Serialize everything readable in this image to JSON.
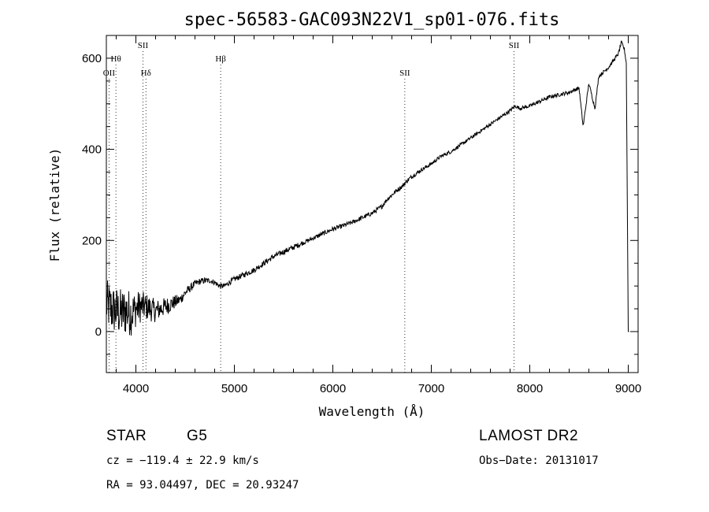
{
  "chart_data": {
    "type": "line",
    "title": "spec-56583-GAC093N22V1_sp01-076.fits",
    "xlabel": "Wavelength (Å)",
    "ylabel": "Flux (relative)",
    "xlim": [
      3700,
      9100
    ],
    "ylim": [
      -90,
      650
    ],
    "x_ticks": [
      "4000",
      "5000",
      "6000",
      "7000",
      "8000",
      "9000"
    ],
    "y_ticks": [
      "0",
      "200",
      "400",
      "600"
    ],
    "grid": false,
    "series": [
      {
        "x": [
          3700,
          3750,
          3800,
          3850,
          3900,
          3950,
          4000,
          4050,
          4100,
          4150,
          4200,
          4250,
          4300,
          4350,
          4400,
          4450,
          4500,
          4550,
          4600,
          4650,
          4700,
          4750,
          4800,
          4850,
          4900,
          4950,
          5000,
          5100,
          5200,
          5300,
          5400,
          5500,
          5600,
          5700,
          5800,
          5900,
          6000,
          6100,
          6200,
          6300,
          6400,
          6500,
          6550,
          6600,
          6650,
          6700,
          6750,
          6800,
          6900,
          7000,
          7100,
          7200,
          7300,
          7400,
          7500,
          7600,
          7700,
          7800,
          7850,
          7900,
          8000,
          8100,
          8200,
          8300,
          8400,
          8500,
          8542,
          8600,
          8662,
          8700,
          8750,
          8800,
          8850,
          8900,
          8930,
          8960,
          8980,
          9000,
          9010
        ],
        "y": [
          60,
          50,
          45,
          40,
          45,
          40,
          50,
          55,
          55,
          50,
          45,
          50,
          55,
          60,
          65,
          70,
          85,
          95,
          105,
          110,
          112,
          112,
          108,
          100,
          100,
          108,
          115,
          125,
          135,
          150,
          165,
          175,
          185,
          195,
          205,
          215,
          225,
          232,
          240,
          250,
          260,
          275,
          290,
          300,
          310,
          318,
          330,
          340,
          355,
          368,
          385,
          395,
          410,
          425,
          440,
          455,
          470,
          485,
          495,
          490,
          495,
          505,
          515,
          520,
          525,
          535,
          450,
          545,
          490,
          560,
          570,
          580,
          595,
          610,
          635,
          620,
          590,
          0,
          0
        ],
        "noise": [
          55,
          55,
          55,
          55,
          55,
          50,
          40,
          35,
          30,
          28,
          25,
          22,
          20,
          18,
          15,
          12,
          10,
          9,
          8,
          7,
          7,
          6,
          6,
          6,
          6,
          6,
          6,
          6,
          6,
          6,
          6,
          6,
          6,
          5,
          5,
          5,
          5,
          5,
          5,
          5,
          5,
          5,
          5,
          5,
          5,
          5,
          5,
          5,
          4,
          4,
          4,
          4,
          4,
          4,
          4,
          4,
          4,
          4,
          4,
          4,
          4,
          4,
          4,
          4,
          4,
          4,
          4,
          4,
          4,
          4,
          4,
          4,
          4,
          4,
          4,
          4,
          4,
          0,
          0
        ]
      }
    ],
    "lines": [
      {
        "label": "OII",
        "x": 3727,
        "row": 2
      },
      {
        "label": "Hθ",
        "x": 3797,
        "row": 1
      },
      {
        "label": "SII",
        "x": 4072,
        "row": 0
      },
      {
        "label": "Hδ",
        "x": 4102,
        "row": 2
      },
      {
        "label": "Hβ",
        "x": 4861,
        "row": 1
      },
      {
        "label": "SII",
        "x": 6731,
        "row": 2
      },
      {
        "label": "SII",
        "x": 7840,
        "row": 0
      }
    ]
  },
  "info": {
    "type_label": "STAR",
    "subclass": "G5",
    "release": "LAMOST DR2",
    "cz": "cz = −119.4 ± 22.9 km/s",
    "obs_date": "Obs−Date: 20131017",
    "coords": "RA =  93.04497, DEC =  20.93247"
  }
}
